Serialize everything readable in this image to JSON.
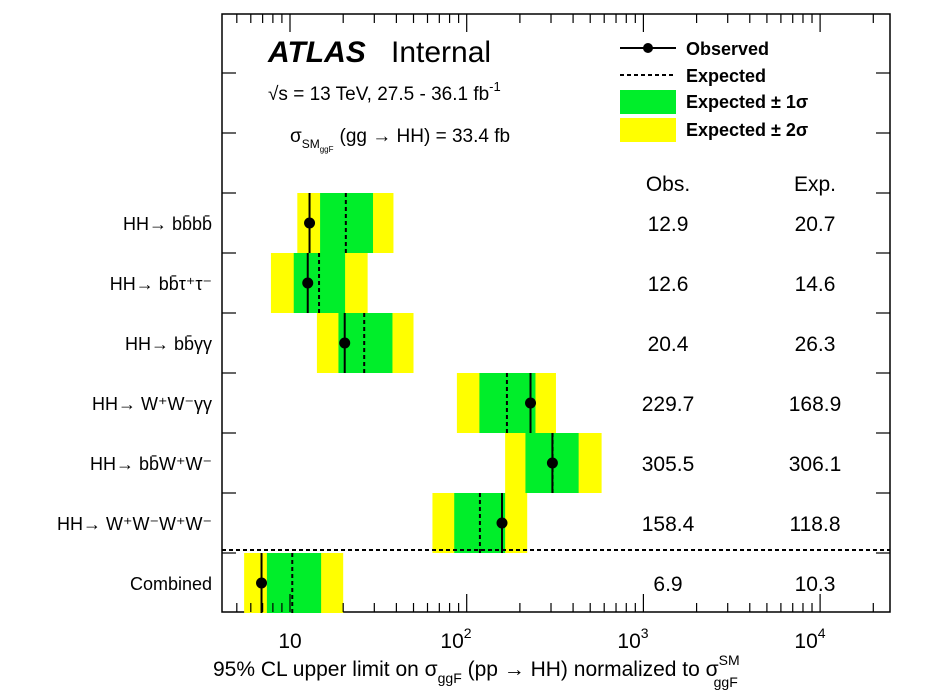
{
  "header": {
    "experiment": "ATLAS",
    "status": "Internal",
    "energy_line": "√s = 13 TeV,  27.5 - 36.1 fb",
    "energy_sup": "-1",
    "sm_xsec_prefix": "σ",
    "sm_xsec_sub": "SM",
    "sm_xsec_subsub": "ggF",
    "sm_xsec_rest": "(gg → HH) = 33.4 fb"
  },
  "legend": {
    "observed": "Observed",
    "expected": "Expected",
    "band1": "Expected ± 1σ",
    "band2": "Expected ± 2σ"
  },
  "columns": {
    "obs": "Obs.",
    "exp": "Exp."
  },
  "colors": {
    "band1": "#00ee2a",
    "band2": "#ffff00",
    "marker": "#000000"
  },
  "xaxis": {
    "label_main": "95% CL upper limit on σ",
    "label_sub": "ggF",
    "label_mid": " (pp → HH) normalized to σ",
    "label_sup2": "SM",
    "label_sub2": "ggF",
    "tick_labels": [
      {
        "base": "10",
        "exp": ""
      },
      {
        "base": "10",
        "exp": "2"
      },
      {
        "base": "10",
        "exp": "3"
      },
      {
        "base": "10",
        "exp": "4"
      }
    ]
  },
  "chart_data": {
    "type": "interval",
    "x_scale": "log",
    "xlim": [
      3.5,
      30000
    ],
    "series": [
      {
        "name": "HH→ bb̄bb̄",
        "observed": 12.9,
        "expected": 20.7,
        "minus1s": 14.8,
        "plus1s": 29.5,
        "minus2s": 11.0,
        "plus2s": 38.5,
        "obs_label": "12.9",
        "exp_label": "20.7"
      },
      {
        "name": "HH→ bb̄τ⁺τ⁻",
        "observed": 12.6,
        "expected": 14.6,
        "minus1s": 10.5,
        "plus1s": 20.5,
        "minus2s": 7.8,
        "plus2s": 27.5,
        "obs_label": "12.6",
        "exp_label": "14.6"
      },
      {
        "name": "HH→ bb̄γγ",
        "observed": 20.4,
        "expected": 26.3,
        "minus1s": 18.8,
        "plus1s": 38.0,
        "minus2s": 14.2,
        "plus2s": 50.0,
        "obs_label": "20.4",
        "exp_label": "26.3"
      },
      {
        "name": "HH→ W⁺W⁻γγ",
        "observed": 229.7,
        "expected": 168.9,
        "minus1s": 118.0,
        "plus1s": 245.0,
        "minus2s": 88.0,
        "plus2s": 320.0,
        "obs_label": "229.7",
        "exp_label": "168.9"
      },
      {
        "name": "HH→ bb̄W⁺W⁻",
        "observed": 305.5,
        "expected": 306.1,
        "minus1s": 215.0,
        "plus1s": 430.0,
        "minus2s": 165.0,
        "plus2s": 580.0,
        "obs_label": "305.5",
        "exp_label": "306.1"
      },
      {
        "name": "HH→ W⁺W⁻W⁺W⁻",
        "observed": 158.4,
        "expected": 118.8,
        "minus1s": 85.0,
        "plus1s": 165.0,
        "minus2s": 64.0,
        "plus2s": 220.0,
        "obs_label": "158.4",
        "exp_label": "118.8"
      },
      {
        "name": "Combined",
        "observed": 6.9,
        "expected": 10.3,
        "minus1s": 7.4,
        "plus1s": 15.0,
        "minus2s": 5.5,
        "plus2s": 20.0,
        "obs_label": "6.9",
        "exp_label": "10.3"
      }
    ]
  }
}
